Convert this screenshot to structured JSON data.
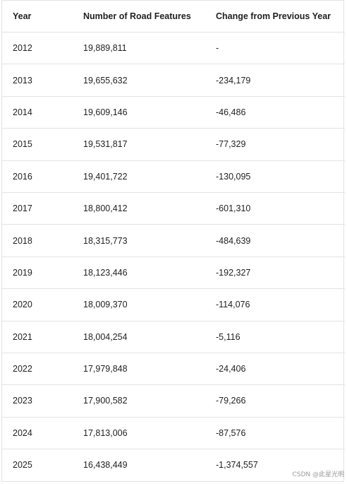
{
  "table": {
    "headers": [
      "Year",
      "Number of Road Features",
      "Change from Previous Year"
    ],
    "rows": [
      [
        "2012",
        "19,889,811",
        "-"
      ],
      [
        "2013",
        "19,655,632",
        "-234,179"
      ],
      [
        "2014",
        "19,609,146",
        "-46,486"
      ],
      [
        "2015",
        "19,531,817",
        "-77,329"
      ],
      [
        "2016",
        "19,401,722",
        "-130,095"
      ],
      [
        "2017",
        "18,800,412",
        "-601,310"
      ],
      [
        "2018",
        "18,315,773",
        "-484,639"
      ],
      [
        "2019",
        "18,123,446",
        "-192,327"
      ],
      [
        "2020",
        "18,009,370",
        "-114,076"
      ],
      [
        "2021",
        "18,004,254",
        "-5,116"
      ],
      [
        "2022",
        "17,979,848",
        "-24,406"
      ],
      [
        "2023",
        "17,900,582",
        "-79,266"
      ],
      [
        "2024",
        "17,813,006",
        "-87,576"
      ],
      [
        "2025",
        "16,438,449",
        "-1,374,557"
      ]
    ]
  },
  "watermark": "CSDN @此星光明",
  "colors": {
    "text": "#1f1f1f",
    "border": "#e3e3e3",
    "watermark": "#9a9a9a"
  }
}
